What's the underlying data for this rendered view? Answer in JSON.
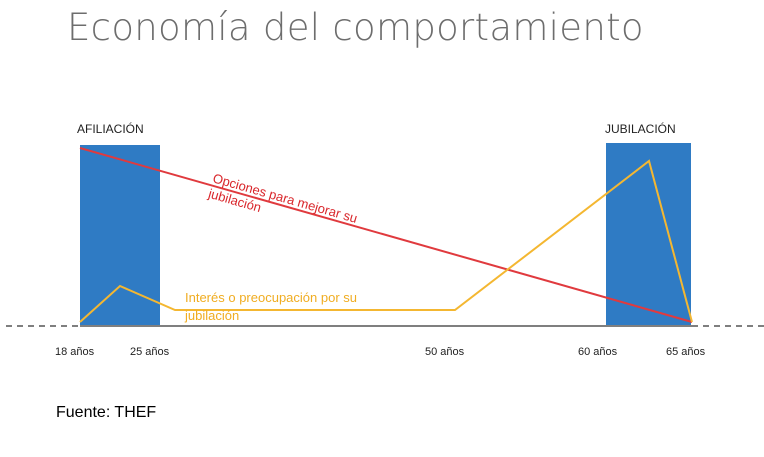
{
  "title": "Economía del comportamiento",
  "phases": {
    "enrollment": "AFILIACIÓN",
    "retirement": "JUBILACIÓN"
  },
  "ages": [
    "18 años",
    "25 años",
    "50 años",
    "60 años",
    "65 años"
  ],
  "red_line_label": [
    "Opciones para mejorar su",
    "jubilación"
  ],
  "yellow_line_label": [
    "Interés o preocupación por su",
    "jubilación"
  ],
  "source": "Fuente: THEF",
  "colors": {
    "box": "#2f7bc4",
    "red_line": "#e03a3e",
    "yellow_line": "#f4b731",
    "baseline": "#555555",
    "title": "#6d6d6d"
  }
}
